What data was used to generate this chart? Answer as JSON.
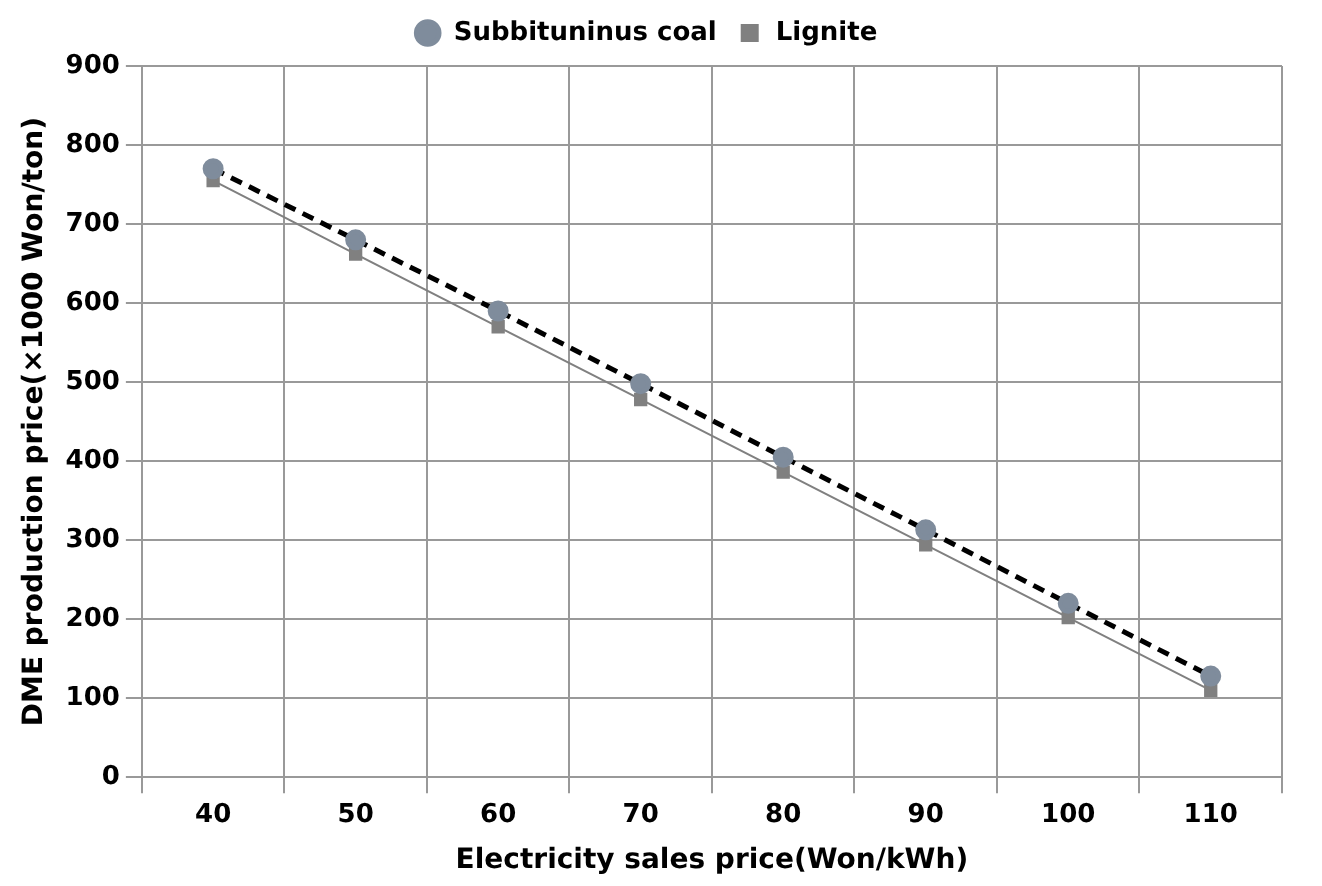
{
  "chart_data": {
    "type": "line",
    "xlabel": "Electricity sales price(Won/kWh)",
    "ylabel": "DME production price(×1000 Won/ton)",
    "categories": [
      "40",
      "50",
      "60",
      "70",
      "80",
      "90",
      "100",
      "110"
    ],
    "series": [
      {
        "name": "Subbituninus coal",
        "color": "#000000",
        "marker": "circle",
        "line_style": "dashed",
        "values": [
          770,
          680,
          590,
          498,
          405,
          313,
          220,
          128
        ]
      },
      {
        "name": "Lignite",
        "color": "#808080",
        "marker": "square",
        "line_style": "solid",
        "values": [
          755,
          662,
          570,
          478,
          386,
          294,
          202,
          110
        ]
      }
    ],
    "ylim": [
      0,
      900
    ],
    "yticks": [
      0,
      100,
      200,
      300,
      400,
      500,
      600,
      700,
      800,
      900
    ],
    "grid": true,
    "legend": "top"
  }
}
